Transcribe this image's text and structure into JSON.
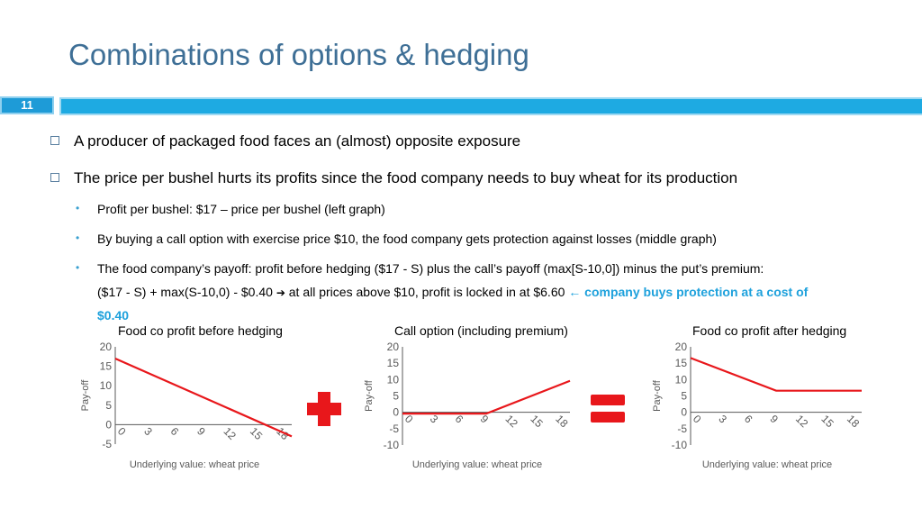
{
  "slide": {
    "title": "Combinations of options & hedging",
    "number": "11"
  },
  "bullets": {
    "b1": "A producer of packaged food faces an (almost) opposite exposure",
    "b2": "The price per bushel hurts its profits since the food company needs to buy wheat for its production",
    "s1": "Profit per bushel: $17 – price per bushel (left graph)",
    "s2": "By buying a call option with exercise price $10, the food company gets protection against losses (middle graph)",
    "s3_line1": "The food company’s payoff: profit before hedging ($17 - S) plus the call’s payoff (max[S-10,0]) minus the put’s premium:",
    "s3_line2_a": "($17 - S) + max(S-10,0) - $0.40 ",
    "s3_arrow1": "➔",
    "s3_line2_b": " at all prices above $10, profit is locked in at $6.60 ",
    "s3_arrow2": "←",
    "s3_hl1": " company buys protection at a cost of",
    "s3_hl2": "$0.40"
  },
  "colors": {
    "title": "#3e6f96",
    "accent": "#1eaae2",
    "line": "#e8171b",
    "symbol": "#e8171b"
  },
  "symbols": {
    "plus": "plus-sign",
    "equals": "equals-sign"
  },
  "chart_data": [
    {
      "type": "line",
      "title": "Food co profit before hedging",
      "xlabel": "Underlying value: wheat price",
      "ylabel": "Pay-off",
      "x_ticks": [
        "0",
        "3",
        "6",
        "9",
        "12",
        "15",
        "18"
      ],
      "y_ticks": [
        "-5",
        "0",
        "5",
        "10",
        "15",
        "20"
      ],
      "ylim": [
        -5,
        20
      ],
      "xlim": [
        0,
        20
      ],
      "series": [
        {
          "x": [
            0,
            20
          ],
          "y": [
            17,
            -3
          ]
        }
      ]
    },
    {
      "type": "line",
      "title": "Call option (including premium)",
      "xlabel": "Underlying value: wheat price",
      "ylabel": "Pay-off",
      "x_ticks": [
        "0",
        "3",
        "6",
        "9",
        "12",
        "15",
        "18"
      ],
      "y_ticks": [
        "-10",
        "-5",
        "0",
        "5",
        "10",
        "15",
        "20"
      ],
      "ylim": [
        -10,
        20
      ],
      "xlim": [
        0,
        20
      ],
      "series": [
        {
          "x": [
            0,
            10,
            20
          ],
          "y": [
            -0.4,
            -0.4,
            9.6
          ]
        }
      ]
    },
    {
      "type": "line",
      "title": "Food co profit after hedging",
      "xlabel": "Underlying value: wheat price",
      "ylabel": "Pay-off",
      "x_ticks": [
        "0",
        "3",
        "6",
        "9",
        "12",
        "15",
        "18"
      ],
      "y_ticks": [
        "-10",
        "-5",
        "0",
        "5",
        "10",
        "15",
        "20"
      ],
      "ylim": [
        -10,
        20
      ],
      "xlim": [
        0,
        20
      ],
      "series": [
        {
          "x": [
            0,
            10,
            20
          ],
          "y": [
            16.6,
            6.6,
            6.6
          ]
        }
      ]
    }
  ]
}
